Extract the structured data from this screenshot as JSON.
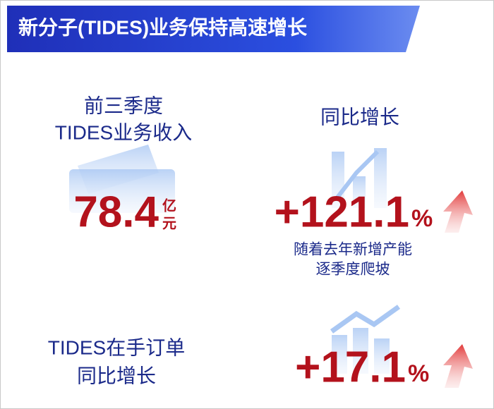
{
  "header": {
    "title": "新分子(TIDES)业务保持高速增长"
  },
  "blocks": [
    {
      "label": [
        "前三季度",
        "TIDES业务收入"
      ],
      "value": "78.4",
      "unit": [
        "亿",
        "元"
      ]
    },
    {
      "label": [
        "同比增长"
      ],
      "value": "+121.1",
      "unit": "%",
      "note": [
        "随着去年新增产能",
        "逐季度爬坡"
      ]
    },
    {
      "label": [
        "TIDES在手订单",
        "同比增长"
      ],
      "value": "+17.1",
      "unit": "%"
    }
  ]
}
